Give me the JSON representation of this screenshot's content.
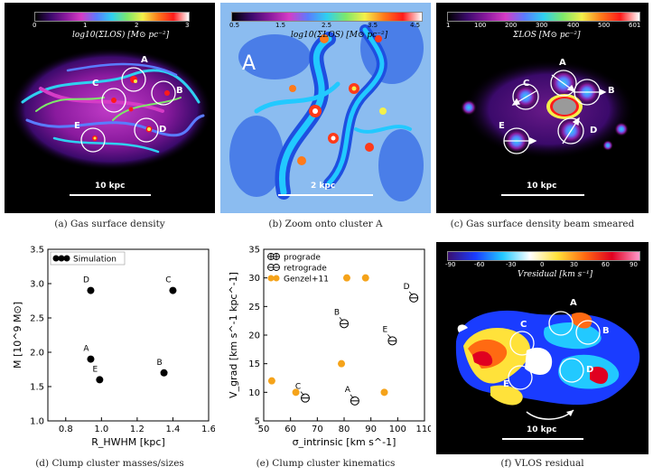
{
  "panels": {
    "a": {
      "caption": "(a) Gas surface density",
      "cbar_title": "log10(ΣLOS) [M⊙ pc⁻²]",
      "cbar_ticks": [
        "0",
        "1",
        "2",
        "3"
      ],
      "scale": "10 kpc",
      "labels": [
        "A",
        "B",
        "C",
        "D",
        "E"
      ]
    },
    "b": {
      "caption": "(b) Zoom onto cluster A",
      "cbar_title": "log10(ΣLOS) [M⊙ pc⁻²]",
      "cbar_ticks": [
        "0.5",
        "1.5",
        "2.5",
        "3.5",
        "4.5"
      ],
      "scale": "2 kpc",
      "big_label": "A"
    },
    "c": {
      "caption": "(c) Gas surface density beam smeared",
      "cbar_title": "ΣLOS [M⊙ pc⁻²]",
      "cbar_ticks": [
        "1",
        "100",
        "200",
        "300",
        "400",
        "500",
        "601"
      ],
      "scale": "10 kpc",
      "labels": [
        "A",
        "B",
        "C",
        "D",
        "E"
      ]
    },
    "d": {
      "caption": "(d) Clump cluster masses/sizes"
    },
    "e": {
      "caption": "(e) Clump cluster kinematics"
    },
    "f": {
      "caption": "(f) VLOS residual",
      "cbar_title": "Vresidual [km s⁻¹]",
      "cbar_ticks": [
        "-90",
        "-60",
        "-30",
        "0",
        "30",
        "60",
        "90"
      ],
      "scale": "10 kpc",
      "labels": [
        "A",
        "B",
        "C",
        "D",
        "E"
      ]
    }
  },
  "colors": {
    "gas_cmap": [
      "#000000",
      "#3b0a6b",
      "#8a1a9e",
      "#d63cc6",
      "#5a7cff",
      "#2fd0f0",
      "#7ee86a",
      "#f4f04a",
      "#ff7a1a",
      "#ff1a1a",
      "#ffffff"
    ],
    "residual_cmap": [
      "#3a1070",
      "#1a3cff",
      "#22c9ff",
      "#ffffff",
      "#ffe23a",
      "#ff6a12",
      "#e00020",
      "#ff9acc"
    ],
    "genzel": "#f5a31a"
  },
  "chart_data": [
    {
      "type": "scatter",
      "xlabel": "R_HWHM [kpc]",
      "ylabel": "M [10^9 M⊙]",
      "xlim": [
        0.7,
        1.6
      ],
      "ylim": [
        1.0,
        3.5
      ],
      "xticks": [
        "0.8",
        "1.0",
        "1.2",
        "1.4",
        "1.6"
      ],
      "yticks": [
        "1.0",
        "1.5",
        "2.0",
        "2.5",
        "3.0",
        "3.5"
      ],
      "legend": "top-left",
      "series": [
        {
          "name": "Simulation",
          "points": [
            {
              "label": "A",
              "x": 0.94,
              "y": 1.9
            },
            {
              "label": "B",
              "x": 1.35,
              "y": 1.7
            },
            {
              "label": "C",
              "x": 1.4,
              "y": 2.9
            },
            {
              "label": "D",
              "x": 0.94,
              "y": 2.9
            },
            {
              "label": "E",
              "x": 0.99,
              "y": 1.6
            }
          ]
        }
      ]
    },
    {
      "type": "scatter",
      "xlabel": "σ_intrinsic [km s^-1]",
      "ylabel": "V_grad [km s^-1 kpc^-1]",
      "xlim": [
        50,
        110
      ],
      "ylim": [
        5,
        35
      ],
      "xticks": [
        "50",
        "60",
        "70",
        "80",
        "90",
        "100",
        "110"
      ],
      "yticks": [
        "5",
        "10",
        "15",
        "20",
        "25",
        "30",
        "35"
      ],
      "legend": "top-left",
      "series": [
        {
          "name": "prograde",
          "points": []
        },
        {
          "name": "retrograde",
          "points": [
            {
              "label": "A",
              "x": 84,
              "y": 8.5
            },
            {
              "label": "B",
              "x": 80,
              "y": 22
            },
            {
              "label": "C",
              "x": 65.5,
              "y": 9
            },
            {
              "label": "D",
              "x": 106,
              "y": 26.5
            },
            {
              "label": "E",
              "x": 98,
              "y": 19
            }
          ]
        },
        {
          "name": "Genzel+11",
          "points": [
            {
              "x": 53,
              "y": 12
            },
            {
              "x": 62,
              "y": 10
            },
            {
              "x": 79,
              "y": 15
            },
            {
              "x": 81,
              "y": 30
            },
            {
              "x": 88,
              "y": 30
            },
            {
              "x": 95,
              "y": 10
            }
          ]
        }
      ]
    }
  ]
}
